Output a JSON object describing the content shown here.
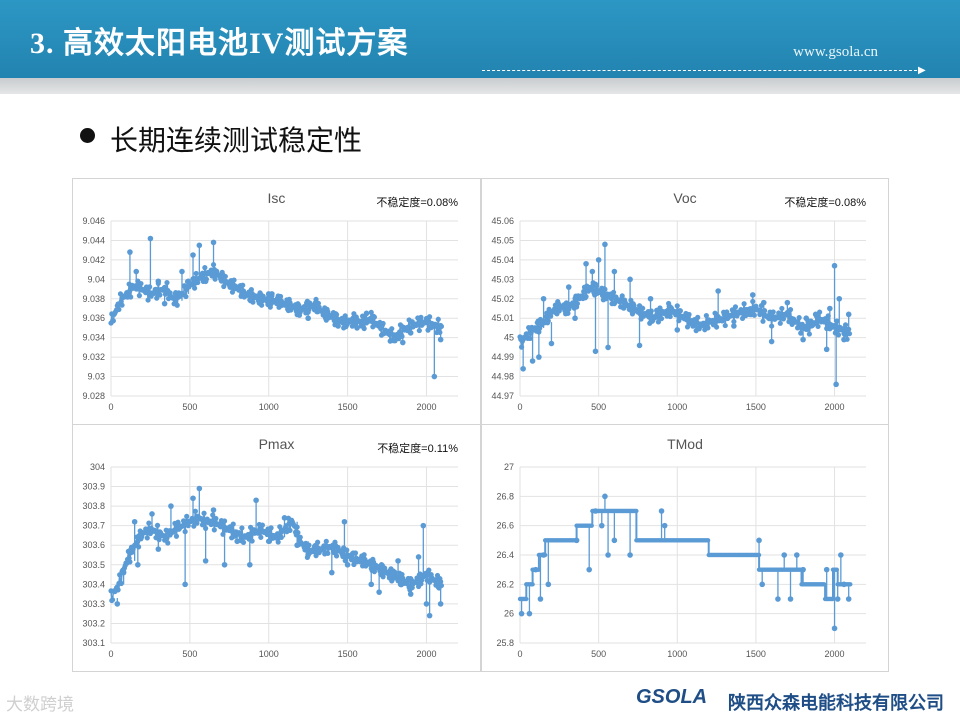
{
  "header": {
    "title": "3. 高效太阳电池IV测试方案",
    "url": "www.gsola.cn"
  },
  "slide": {
    "bullet_text": "长期连续测试稳定性"
  },
  "footer": {
    "logo_text": "GSOLA",
    "company": "陕西众森电能科技有限公司",
    "watermark": "大数跨境"
  },
  "colors": {
    "header_blue": "#2a8fbd",
    "series_blue": "#5b9bd5",
    "company_blue": "#1f4e86"
  },
  "chart_data": [
    {
      "type": "line",
      "title": "Isc",
      "annotation": "不稳定度=0.08%",
      "ylim": [
        9.028,
        9.046
      ],
      "yticks": [
        "9.028",
        "9.03",
        "9.032",
        "9.034",
        "9.036",
        "9.038",
        "9.04",
        "9.042",
        "9.044",
        "9.046"
      ],
      "xlim": [
        0,
        2200
      ],
      "xticks": [
        "0",
        "500",
        "1000",
        "1500",
        "2000"
      ],
      "grid": true,
      "series": [
        {
          "x": [
            0,
            50,
            100,
            150,
            200,
            250,
            300,
            350,
            400,
            450,
            500,
            550,
            600,
            650,
            700,
            750,
            800,
            850,
            900,
            950,
            1000,
            1050,
            1100,
            1150,
            1200,
            1250,
            1300,
            1350,
            1400,
            1450,
            1500,
            1550,
            1600,
            1650,
            1700,
            1750,
            1800,
            1850,
            1900,
            1950,
            2000,
            2050,
            2100
          ],
          "y": [
            9.0355,
            9.0375,
            9.0385,
            9.0393,
            9.039,
            9.0385,
            9.0388,
            9.039,
            9.0378,
            9.0385,
            9.0395,
            9.04,
            9.0405,
            9.0408,
            9.0402,
            9.0395,
            9.0392,
            9.0385,
            9.0382,
            9.038,
            9.0378,
            9.0378,
            9.0375,
            9.0372,
            9.0368,
            9.0372,
            9.0373,
            9.0365,
            9.0362,
            9.0357,
            9.0356,
            9.0358,
            9.0355,
            9.036,
            9.0352,
            9.0345,
            9.034,
            9.0348,
            9.0352,
            9.0355,
            9.0356,
            9.0352,
            9.035
          ],
          "spikes": [
            [
              120,
              9.0428
            ],
            [
              160,
              9.0408
            ],
            [
              250,
              9.0442
            ],
            [
              300,
              9.0398
            ],
            [
              340,
              9.0375
            ],
            [
              410,
              9.0385
            ],
            [
              450,
              9.0408
            ],
            [
              490,
              9.0398
            ],
            [
              520,
              9.0425
            ],
            [
              560,
              9.0435
            ],
            [
              600,
              9.0398
            ],
            [
              650,
              9.0438
            ],
            [
              760,
              9.0395
            ],
            [
              830,
              9.0385
            ],
            [
              1000,
              9.0385
            ],
            [
              1020,
              9.0385
            ],
            [
              1200,
              9.0368
            ],
            [
              1250,
              9.036
            ],
            [
              1440,
              9.0352
            ],
            [
              1500,
              9.0355
            ],
            [
              1560,
              9.035
            ],
            [
              1620,
              9.0365
            ],
            [
              1800,
              9.0337
            ],
            [
              1850,
              9.0335
            ],
            [
              1900,
              9.0345
            ],
            [
              1960,
              9.0358
            ],
            [
              2050,
              9.03
            ],
            [
              2090,
              9.0338
            ]
          ]
        }
      ]
    },
    {
      "type": "line",
      "title": "Voc",
      "annotation": "不稳定度=0.08%",
      "ylim": [
        44.97,
        45.06
      ],
      "yticks": [
        "44.97",
        "44.98",
        "44.99",
        "45",
        "45.01",
        "45.02",
        "45.03",
        "45.04",
        "45.05",
        "45.06"
      ],
      "xlim": [
        0,
        2200
      ],
      "xticks": [
        "0",
        "500",
        "1000",
        "1500",
        "2000"
      ],
      "grid": true,
      "series": [
        {
          "x": [
            0,
            50,
            100,
            150,
            200,
            250,
            300,
            350,
            400,
            450,
            500,
            550,
            600,
            650,
            700,
            750,
            800,
            850,
            900,
            950,
            1000,
            1050,
            1100,
            1150,
            1200,
            1250,
            1300,
            1350,
            1400,
            1450,
            1500,
            1550,
            1600,
            1650,
            1700,
            1750,
            1800,
            1850,
            1900,
            1950,
            2000,
            2050,
            2100
          ],
          "y": [
            44.997,
            45.002,
            45.005,
            45.008,
            45.013,
            45.016,
            45.015,
            45.018,
            45.022,
            45.026,
            45.024,
            45.022,
            45.02,
            45.018,
            45.016,
            45.014,
            45.012,
            45.01,
            45.012,
            45.014,
            45.013,
            45.01,
            45.008,
            45.006,
            45.008,
            45.009,
            45.01,
            45.012,
            45.013,
            45.014,
            45.015,
            45.012,
            45.01,
            45.011,
            45.012,
            45.008,
            45.005,
            45.006,
            45.01,
            45.008,
            45.005,
            45.004,
            45.002
          ],
          "spikes": [
            [
              20,
              44.984
            ],
            [
              80,
              44.988
            ],
            [
              120,
              44.99
            ],
            [
              150,
              45.02
            ],
            [
              200,
              44.997
            ],
            [
              250,
              45.015
            ],
            [
              310,
              45.026
            ],
            [
              350,
              45.01
            ],
            [
              420,
              45.038
            ],
            [
              460,
              45.034
            ],
            [
              480,
              44.993
            ],
            [
              500,
              45.04
            ],
            [
              540,
              45.048
            ],
            [
              560,
              44.995
            ],
            [
              600,
              45.034
            ],
            [
              700,
              45.03
            ],
            [
              760,
              44.996
            ],
            [
              830,
              45.02
            ],
            [
              870,
              45.014
            ],
            [
              950,
              45.016
            ],
            [
              1000,
              45.004
            ],
            [
              1100,
              45.006
            ],
            [
              1260,
              45.024
            ],
            [
              1300,
              45.012
            ],
            [
              1360,
              45.006
            ],
            [
              1460,
              45.012
            ],
            [
              1480,
              45.022
            ],
            [
              1550,
              45.018
            ],
            [
              1600,
              44.998
            ],
            [
              1700,
              45.018
            ],
            [
              1800,
              44.999
            ],
            [
              1820,
              45.01
            ],
            [
              1880,
              45.012
            ],
            [
              1950,
              44.994
            ],
            [
              1970,
              45.015
            ],
            [
              2000,
              45.037
            ],
            [
              2010,
              44.976
            ],
            [
              2030,
              45.02
            ],
            [
              2060,
              44.999
            ],
            [
              2090,
              45.012
            ]
          ]
        }
      ]
    },
    {
      "type": "line",
      "title": "Pmax",
      "annotation": "不稳定度=0.11%",
      "ylim": [
        303.1,
        304
      ],
      "yticks": [
        "303.1",
        "303.2",
        "303.3",
        "303.4",
        "303.5",
        "303.6",
        "303.7",
        "303.8",
        "303.9",
        "304"
      ],
      "xlim": [
        0,
        2200
      ],
      "xticks": [
        "0",
        "500",
        "1000",
        "1500",
        "2000"
      ],
      "grid": true,
      "series": [
        {
          "x": [
            0,
            50,
            100,
            150,
            200,
            250,
            300,
            350,
            400,
            450,
            500,
            550,
            600,
            650,
            700,
            750,
            800,
            850,
            900,
            950,
            1000,
            1050,
            1100,
            1150,
            1200,
            1250,
            1300,
            1350,
            1400,
            1450,
            1500,
            1550,
            1600,
            1650,
            1700,
            1750,
            1800,
            1850,
            1900,
            1950,
            2000,
            2050,
            2100
          ],
          "y": [
            303.33,
            303.4,
            303.52,
            303.6,
            303.66,
            303.68,
            303.66,
            303.64,
            303.68,
            303.7,
            303.72,
            303.74,
            303.72,
            303.72,
            303.7,
            303.68,
            303.66,
            303.64,
            303.66,
            303.68,
            303.66,
            303.64,
            303.68,
            303.72,
            303.62,
            303.57,
            303.58,
            303.58,
            303.59,
            303.57,
            303.55,
            303.53,
            303.52,
            303.5,
            303.48,
            303.46,
            303.44,
            303.42,
            303.4,
            303.42,
            303.45,
            303.42,
            303.4
          ],
          "spikes": [
            [
              40,
              303.3
            ],
            [
              80,
              303.46
            ],
            [
              120,
              303.56
            ],
            [
              150,
              303.72
            ],
            [
              170,
              303.5
            ],
            [
              260,
              303.76
            ],
            [
              300,
              303.58
            ],
            [
              380,
              303.8
            ],
            [
              470,
              303.4
            ],
            [
              520,
              303.84
            ],
            [
              560,
              303.89
            ],
            [
              600,
              303.52
            ],
            [
              650,
              303.78
            ],
            [
              720,
              303.5
            ],
            [
              800,
              303.62
            ],
            [
              880,
              303.5
            ],
            [
              920,
              303.83
            ],
            [
              1000,
              303.62
            ],
            [
              1100,
              303.74
            ],
            [
              1180,
              303.6
            ],
            [
              1250,
              303.55
            ],
            [
              1300,
              303.58
            ],
            [
              1400,
              303.46
            ],
            [
              1480,
              303.72
            ],
            [
              1500,
              303.5
            ],
            [
              1600,
              303.5
            ],
            [
              1650,
              303.4
            ],
            [
              1700,
              303.36
            ],
            [
              1800,
              303.46
            ],
            [
              1820,
              303.52
            ],
            [
              1900,
              303.35
            ],
            [
              1950,
              303.54
            ],
            [
              1980,
              303.7
            ],
            [
              2000,
              303.3
            ],
            [
              2020,
              303.24
            ],
            [
              2060,
              303.42
            ],
            [
              2090,
              303.3
            ]
          ]
        }
      ]
    },
    {
      "type": "line",
      "title": "TMod",
      "ylim": [
        25.8,
        27
      ],
      "yticks": [
        "25.8",
        "26",
        "26.2",
        "26.4",
        "26.6",
        "26.8",
        "27"
      ],
      "xlim": [
        0,
        2200
      ],
      "xticks": [
        "0",
        "500",
        "1000",
        "1500",
        "2000"
      ],
      "grid": true,
      "series": [
        {
          "x": [
            0,
            40,
            40,
            80,
            80,
            120,
            120,
            160,
            160,
            360,
            360,
            460,
            460,
            740,
            740,
            1200,
            1200,
            1520,
            1520,
            1790,
            1790,
            1940,
            1940,
            1990,
            1990,
            2020,
            2020,
            2100
          ],
          "y": [
            26.1,
            26.1,
            26.2,
            26.2,
            26.3,
            26.3,
            26.4,
            26.4,
            26.5,
            26.5,
            26.6,
            26.6,
            26.7,
            26.7,
            26.5,
            26.5,
            26.4,
            26.4,
            26.3,
            26.3,
            26.2,
            26.2,
            26.1,
            26.1,
            26.3,
            26.3,
            26.2,
            26.2
          ],
          "spikes": [
            [
              10,
              26.0
            ],
            [
              60,
              26.0
            ],
            [
              100,
              26.3
            ],
            [
              130,
              26.1
            ],
            [
              150,
              26.4
            ],
            [
              180,
              26.2
            ],
            [
              360,
              26.5
            ],
            [
              440,
              26.3
            ],
            [
              480,
              26.7
            ],
            [
              520,
              26.6
            ],
            [
              540,
              26.8
            ],
            [
              560,
              26.4
            ],
            [
              600,
              26.5
            ],
            [
              700,
              26.4
            ],
            [
              900,
              26.7
            ],
            [
              920,
              26.6
            ],
            [
              1520,
              26.5
            ],
            [
              1540,
              26.2
            ],
            [
              1640,
              26.1
            ],
            [
              1680,
              26.4
            ],
            [
              1720,
              26.1
            ],
            [
              1760,
              26.4
            ],
            [
              1800,
              26.3
            ],
            [
              1950,
              26.3
            ],
            [
              2000,
              25.9
            ],
            [
              2020,
              26.1
            ],
            [
              2040,
              26.4
            ],
            [
              2060,
              26.2
            ],
            [
              2090,
              26.1
            ]
          ]
        }
      ]
    }
  ]
}
